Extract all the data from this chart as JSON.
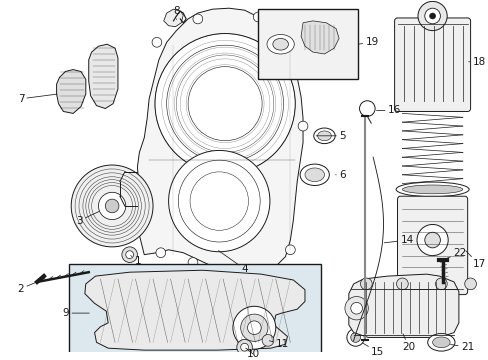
{
  "bg_color": "#ffffff",
  "fig_width": 4.89,
  "fig_height": 3.6,
  "dpi": 100,
  "gray": "#1a1a1a",
  "boxfill": "#dde8ee",
  "insetfill": "#e8e8e8",
  "lw": 0.7
}
